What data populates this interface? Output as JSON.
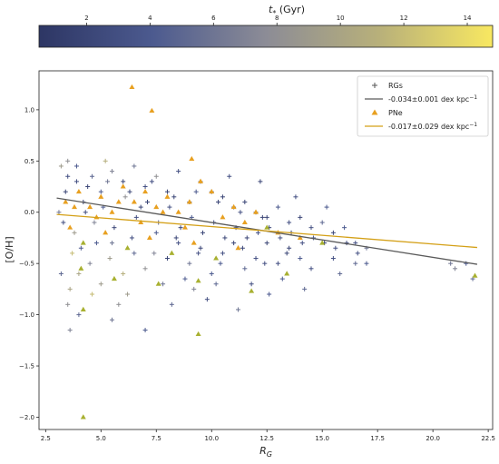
{
  "chart_data": {
    "type": "scatter",
    "colorbar": {
      "label": "t_* (Gyr)",
      "label_symbol": "t",
      "label_subscript": "*",
      "label_unit": " (Gyr)",
      "range": [
        0.5,
        14.8
      ],
      "ticks": [
        2,
        4,
        6,
        8,
        10,
        12,
        14
      ],
      "tick_labels": [
        "2",
        "4",
        "6",
        "8",
        "10",
        "12",
        "14"
      ],
      "colormap": [
        "#2d3664",
        "#4c5a8f",
        "#8c8c96",
        "#b8b07a",
        "#f8e861"
      ],
      "placement": "top"
    },
    "xlabel": "R",
    "xlabel_sub": "G",
    "ylabel": "[O/H]",
    "xlim": [
      2.2,
      22.7
    ],
    "ylim": [
      -2.12,
      1.38
    ],
    "xticks": [
      2.5,
      5.0,
      7.5,
      10.0,
      12.5,
      15.0,
      17.5,
      20.0,
      22.5
    ],
    "xtick_labels": [
      "2.5",
      "5.0",
      "7.5",
      "10.0",
      "12.5",
      "15.0",
      "17.5",
      "20.0",
      "22.5"
    ],
    "yticks": [
      1.0,
      0.5,
      0.0,
      -0.5,
      -1.0,
      -1.5,
      -2.0
    ],
    "ytick_labels": [
      "1.0",
      "0.5",
      "0.0",
      "−0.5",
      "−1.0",
      "−1.5",
      "−2.0"
    ],
    "grid": false,
    "legend_position": "top-right",
    "series": [
      {
        "name": "RGs",
        "marker": "plus",
        "color_encoding": "age",
        "points": [
          [
            3.2,
            0.45,
            9
          ],
          [
            3.5,
            0.5,
            8
          ],
          [
            3.9,
            0.3,
            3
          ],
          [
            4.2,
            0.1,
            2
          ],
          [
            4.6,
            0.35,
            5
          ],
          [
            5.0,
            0.2,
            4
          ],
          [
            5.5,
            0.4,
            7
          ],
          [
            6.0,
            0.3,
            2
          ],
          [
            6.5,
            0.45,
            6
          ],
          [
            7.0,
            0.25,
            3
          ],
          [
            7.5,
            0.35,
            8
          ],
          [
            8.0,
            0.2,
            2
          ],
          [
            8.5,
            0.4,
            3
          ],
          [
            9.0,
            0.1,
            2
          ],
          [
            9.5,
            0.3,
            5
          ],
          [
            10.0,
            0.2,
            3
          ],
          [
            10.5,
            0.15,
            2
          ],
          [
            11.0,
            0.05,
            4
          ],
          [
            11.5,
            0.1,
            2
          ],
          [
            12.0,
            0.0,
            3
          ],
          [
            12.5,
            -0.05,
            2
          ],
          [
            13.0,
            0.05,
            4
          ],
          [
            13.5,
            -0.1,
            3
          ],
          [
            14.0,
            -0.05,
            2
          ],
          [
            14.5,
            -0.15,
            3
          ],
          [
            15.0,
            -0.1,
            5
          ],
          [
            15.5,
            -0.2,
            2
          ],
          [
            16.0,
            -0.15,
            4
          ],
          [
            16.5,
            -0.3,
            3
          ],
          [
            17.0,
            -0.35,
            6
          ],
          [
            3.3,
            -0.1,
            3
          ],
          [
            3.7,
            -0.4,
            12
          ],
          [
            4.0,
            -0.6,
            10
          ],
          [
            4.5,
            -0.5,
            7
          ],
          [
            5.0,
            -0.7,
            9
          ],
          [
            5.5,
            -0.3,
            6
          ],
          [
            6.0,
            -0.6,
            11
          ],
          [
            6.5,
            -0.4,
            5
          ],
          [
            7.0,
            -0.55,
            8
          ],
          [
            7.5,
            -0.2,
            4
          ],
          [
            8.0,
            -0.45,
            2
          ],
          [
            8.5,
            -0.3,
            3
          ],
          [
            9.0,
            -0.5,
            6
          ],
          [
            9.5,
            -0.35,
            2
          ],
          [
            10.0,
            -0.6,
            4
          ],
          [
            10.5,
            -0.4,
            3
          ],
          [
            11.0,
            -0.3,
            2
          ],
          [
            11.5,
            -0.55,
            5
          ],
          [
            12.0,
            -0.45,
            3
          ],
          [
            12.5,
            -0.3,
            2
          ],
          [
            13.0,
            -0.5,
            3
          ],
          [
            13.5,
            -0.35,
            2
          ],
          [
            14.0,
            -0.45,
            4
          ],
          [
            14.5,
            -0.55,
            3
          ],
          [
            15.5,
            -0.45,
            3
          ],
          [
            16.5,
            -0.5,
            5
          ],
          [
            17.0,
            -0.5,
            4
          ],
          [
            3.5,
            -0.9,
            8
          ],
          [
            4.0,
            -1.0,
            5
          ],
          [
            5.5,
            -1.05,
            6
          ],
          [
            7.0,
            -1.15,
            4
          ],
          [
            6.2,
            -0.8,
            9
          ],
          [
            3.6,
            -1.15,
            7
          ],
          [
            8.2,
            -0.9,
            5
          ],
          [
            9.8,
            -0.85,
            3
          ],
          [
            11.2,
            -0.95,
            6
          ],
          [
            12.6,
            -0.8,
            4
          ],
          [
            14.2,
            -0.75,
            5
          ],
          [
            4.8,
            -0.3,
            4
          ],
          [
            6.8,
            0.05,
            2
          ],
          [
            5.2,
            0.5,
            11
          ],
          [
            3.9,
            0.45,
            4
          ],
          [
            10.8,
            0.35,
            3
          ],
          [
            12.2,
            0.3,
            2
          ],
          [
            13.8,
            0.15,
            3
          ],
          [
            15.2,
            0.05,
            4
          ],
          [
            20.8,
            -0.5,
            6
          ],
          [
            21.5,
            -0.5,
            4
          ],
          [
            21.0,
            -0.55,
            7
          ],
          [
            21.8,
            -0.65,
            5
          ],
          [
            3.1,
            0.0,
            6
          ],
          [
            3.4,
            0.2,
            2
          ],
          [
            3.8,
            -0.2,
            9
          ],
          [
            4.3,
            0.0,
            3
          ],
          [
            4.7,
            -0.1,
            7
          ],
          [
            5.1,
            0.05,
            4
          ],
          [
            5.6,
            -0.15,
            2
          ],
          [
            6.1,
            0.15,
            8
          ],
          [
            6.6,
            -0.05,
            3
          ],
          [
            7.1,
            0.1,
            2
          ],
          [
            7.6,
            -0.1,
            5
          ],
          [
            8.1,
            0.05,
            3
          ],
          [
            8.6,
            -0.15,
            2
          ],
          [
            9.1,
            -0.05,
            4
          ],
          [
            9.6,
            -0.2,
            2
          ],
          [
            10.1,
            -0.1,
            3
          ],
          [
            10.6,
            -0.25,
            2
          ],
          [
            11.1,
            -0.15,
            3
          ],
          [
            11.6,
            -0.25,
            2
          ],
          [
            12.1,
            -0.2,
            3
          ],
          [
            12.6,
            -0.15,
            2
          ],
          [
            13.1,
            -0.25,
            3
          ],
          [
            13.6,
            -0.2,
            2
          ],
          [
            14.1,
            -0.3,
            3
          ],
          [
            14.6,
            -0.25,
            4
          ],
          [
            15.1,
            -0.3,
            2
          ],
          [
            15.6,
            -0.35,
            3
          ],
          [
            16.1,
            -0.3,
            2
          ],
          [
            16.6,
            -0.4,
            3
          ],
          [
            3.2,
            -0.6,
            5
          ],
          [
            3.5,
            0.35,
            3
          ],
          [
            4.4,
            0.25,
            2
          ],
          [
            5.3,
            0.3,
            6
          ],
          [
            6.3,
            0.2,
            2
          ],
          [
            7.3,
            0.3,
            3
          ],
          [
            8.3,
            0.15,
            2
          ],
          [
            9.3,
            0.2,
            4
          ],
          [
            10.3,
            0.1,
            2
          ],
          [
            11.3,
            0.0,
            3
          ],
          [
            12.3,
            -0.05,
            2
          ],
          [
            4.1,
            -0.35,
            4
          ],
          [
            5.4,
            -0.45,
            9
          ],
          [
            6.4,
            -0.25,
            3
          ],
          [
            7.4,
            -0.4,
            7
          ],
          [
            8.4,
            -0.25,
            2
          ],
          [
            9.4,
            -0.4,
            3
          ],
          [
            10.4,
            -0.5,
            4
          ],
          [
            11.4,
            -0.35,
            2
          ],
          [
            12.4,
            -0.5,
            3
          ],
          [
            13.4,
            -0.4,
            2
          ],
          [
            3.6,
            -0.75,
            10
          ],
          [
            4.6,
            -0.8,
            12
          ],
          [
            5.8,
            -0.9,
            8
          ],
          [
            7.8,
            -0.7,
            6
          ],
          [
            8.8,
            -0.65,
            4
          ],
          [
            9.2,
            -0.75,
            7
          ],
          [
            10.2,
            -0.7,
            5
          ],
          [
            11.8,
            -0.7,
            3
          ],
          [
            13.2,
            -0.65,
            4
          ],
          [
            15.8,
            -0.6,
            5
          ]
        ]
      },
      {
        "name": "PNe",
        "marker": "triangle",
        "color_encoding": "age",
        "points": [
          [
            6.4,
            1.22,
            9
          ],
          [
            7.3,
            0.99,
            9
          ],
          [
            9.1,
            0.52,
            9
          ],
          [
            3.4,
            0.1,
            9
          ],
          [
            4.0,
            0.2,
            9
          ],
          [
            4.5,
            0.05,
            8
          ],
          [
            5.0,
            0.15,
            9
          ],
          [
            5.5,
            0.0,
            9
          ],
          [
            6.0,
            0.25,
            9
          ],
          [
            6.5,
            0.1,
            9
          ],
          [
            7.0,
            0.2,
            9
          ],
          [
            7.5,
            0.05,
            9
          ],
          [
            8.0,
            0.15,
            9
          ],
          [
            8.5,
            0.0,
            9
          ],
          [
            9.0,
            0.1,
            9
          ],
          [
            9.5,
            0.3,
            9
          ],
          [
            10.0,
            0.2,
            9
          ],
          [
            10.5,
            -0.05,
            9
          ],
          [
            11.0,
            0.05,
            9
          ],
          [
            11.5,
            -0.1,
            9
          ],
          [
            12.0,
            0.0,
            9
          ],
          [
            12.5,
            -0.15,
            12
          ],
          [
            13.0,
            -0.2,
            9
          ],
          [
            14.0,
            -0.25,
            9
          ],
          [
            15.0,
            -0.3,
            12
          ],
          [
            3.6,
            -0.15,
            9
          ],
          [
            4.2,
            -0.3,
            13
          ],
          [
            5.2,
            -0.2,
            9
          ],
          [
            6.2,
            -0.35,
            13
          ],
          [
            7.2,
            -0.25,
            9
          ],
          [
            8.2,
            -0.4,
            13
          ],
          [
            9.2,
            -0.3,
            9
          ],
          [
            10.2,
            -0.45,
            13
          ],
          [
            11.2,
            -0.35,
            9
          ],
          [
            4.1,
            -0.55,
            13
          ],
          [
            5.6,
            -0.65,
            13
          ],
          [
            7.6,
            -0.7,
            13
          ],
          [
            9.4,
            -0.67,
            13
          ],
          [
            11.8,
            -0.77,
            13
          ],
          [
            13.4,
            -0.6,
            13
          ],
          [
            4.2,
            -0.95,
            13
          ],
          [
            9.4,
            -1.19,
            13
          ],
          [
            4.2,
            -2.0,
            13
          ],
          [
            21.9,
            -0.62,
            13
          ],
          [
            3.8,
            0.05,
            9
          ],
          [
            4.8,
            -0.05,
            9
          ],
          [
            5.8,
            0.1,
            9
          ],
          [
            6.8,
            -0.1,
            9
          ],
          [
            7.8,
            0.0,
            9
          ],
          [
            8.8,
            -0.15,
            9
          ]
        ]
      }
    ],
    "fits": [
      {
        "name": "-0.034±0.001 dex kpc",
        "name_sup": "−1",
        "slope": -0.034,
        "intercept": 0.24,
        "x_range": [
          3.0,
          22.0
        ],
        "color": "#5a5a5a"
      },
      {
        "name": "-0.017±0.029 dex kpc",
        "name_sup": "−1",
        "slope": -0.017,
        "intercept": 0.03,
        "x_range": [
          3.0,
          22.0
        ],
        "color": "#d4a017"
      }
    ],
    "colors": {
      "rg_base": "#3b4a7a",
      "pne_base": "#e8a020",
      "fit_rg": "#5a5a5a",
      "fit_pne": "#d4a017"
    }
  }
}
